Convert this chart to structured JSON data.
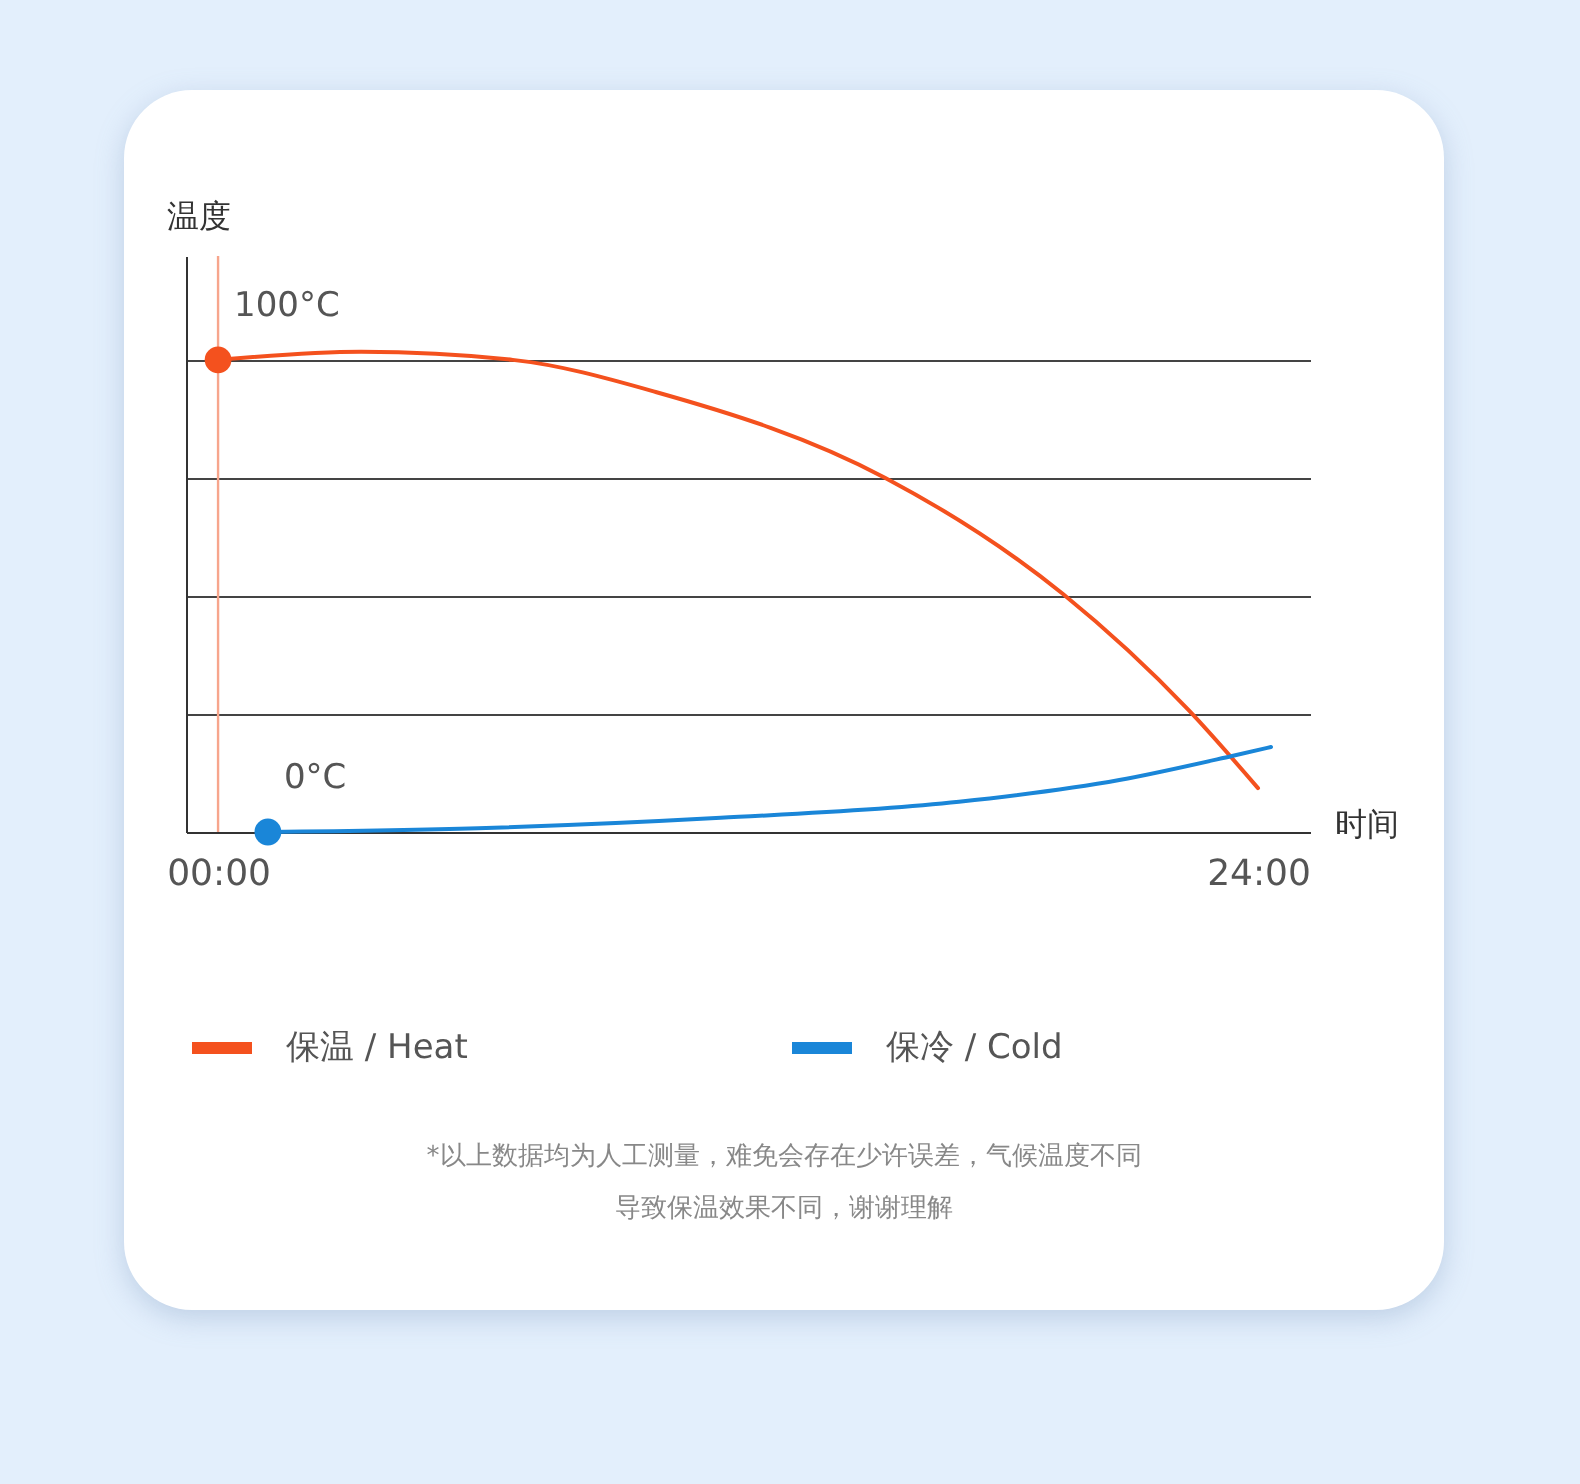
{
  "chart_data": {
    "type": "line",
    "xlabel": "时间",
    "ylabel": "温度",
    "xlim": [
      -0.74,
      25.2
    ],
    "ylim": [
      0,
      122
    ],
    "xticks": [
      {
        "value": 0,
        "label": "00:00"
      },
      {
        "value": 24,
        "label": "24:00"
      }
    ],
    "yticks": [
      {
        "value": 25,
        "label": null
      },
      {
        "value": 50,
        "label": null
      },
      {
        "value": 75,
        "label": null
      },
      {
        "value": 100,
        "label": null
      }
    ],
    "grid": "y",
    "legend": "bottom",
    "series": [
      {
        "name": "保温 / Heat",
        "color": "#f4511e",
        "x": [
          0,
          3.3,
          6.8,
          10.1,
          15.4,
          19.5,
          22.4,
          24
        ],
        "values": [
          100,
          101.7,
          100,
          93.2,
          75,
          50.4,
          25.8,
          9.3
        ],
        "value_labels": [
          "100°C",
          null,
          null,
          null,
          null,
          null,
          null,
          null
        ]
      },
      {
        "name": "保冷 / Cold",
        "color": "#1a86d8",
        "x": [
          1.15,
          6,
          11.6,
          17.1,
          20.8,
          23.4,
          24.3
        ],
        "values": [
          0,
          0.8,
          3,
          6.4,
          11,
          16.1,
          18
        ],
        "value_labels": [
          "0°C",
          null,
          null,
          null,
          null,
          null,
          null
        ]
      }
    ],
    "ref_lines": [
      {
        "axis": "x",
        "value": 0,
        "color": "#f7a58c"
      }
    ],
    "annotations": [
      "*以上数据均为人工测量，难免会存在少许误差，气候温度不同",
      "导致保温效果不同，谢谢理解"
    ]
  }
}
